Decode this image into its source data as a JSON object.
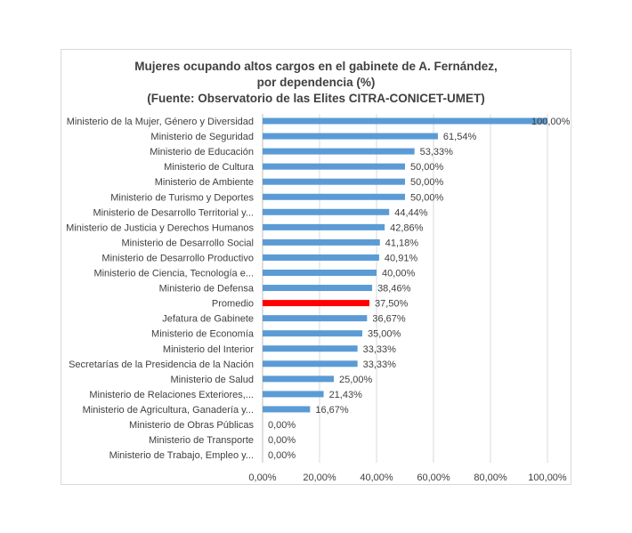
{
  "chart_data": {
    "type": "bar",
    "orientation": "horizontal",
    "title": [
      "Mujeres ocupando altos cargos en el gabinete de A. Fernández,",
      "por dependencia (%)",
      "(Fuente: Observatorio de las Elites CITRA-CONICET-UMET)"
    ],
    "categories": [
      "Ministerio de la Mujer, Género y Diversidad",
      "Ministerio de Seguridad",
      "Ministerio de Educación",
      "Ministerio de Cultura",
      "Ministerio de Ambiente",
      "Ministerio de Turismo y Deportes",
      "Ministerio de Desarrollo Territorial y...",
      "Ministerio de Justicia y Derechos Humanos",
      "Ministerio de Desarrollo Social",
      "Ministerio de Desarrollo Productivo",
      "Ministerio de Ciencia, Tecnología e...",
      "Ministerio de Defensa",
      "Promedio",
      "Jefatura de Gabinete",
      "Ministerio de Economía",
      "Ministerio del Interior",
      "Secretarías de la Presidencia de la Nación",
      "Ministerio de Salud",
      "Ministerio de Relaciones Exteriores,...",
      "Ministerio de Agricultura, Ganadería y...",
      "Ministerio de Obras Públicas",
      "Ministerio de Transporte",
      "Ministerio de Trabajo, Empleo y..."
    ],
    "values": [
      100,
      61.54,
      53.33,
      50,
      50,
      50,
      44.44,
      42.86,
      41.18,
      40.91,
      40,
      38.46,
      37.5,
      36.67,
      35,
      33.33,
      33.33,
      25,
      21.43,
      16.67,
      0,
      0,
      0
    ],
    "data_labels": [
      "100,00%",
      "61,54%",
      "53,33%",
      "50,00%",
      "50,00%",
      "50,00%",
      "44,44%",
      "42,86%",
      "41,18%",
      "40,91%",
      "40,00%",
      "38,46%",
      "37,50%",
      "36,67%",
      "35,00%",
      "33,33%",
      "33,33%",
      "25,00%",
      "21,43%",
      "16,67%",
      "0,00%",
      "0,00%",
      "0,00%"
    ],
    "xlim": [
      0,
      100
    ],
    "x_ticks": [
      "0,00%",
      "20,00%",
      "40,00%",
      "60,00%",
      "80,00%",
      "100,00%"
    ],
    "grid": "vertical",
    "colors": {
      "default": "#5b9bd5",
      "highlight": "#ff0000",
      "highlight_category": "Promedio"
    }
  }
}
